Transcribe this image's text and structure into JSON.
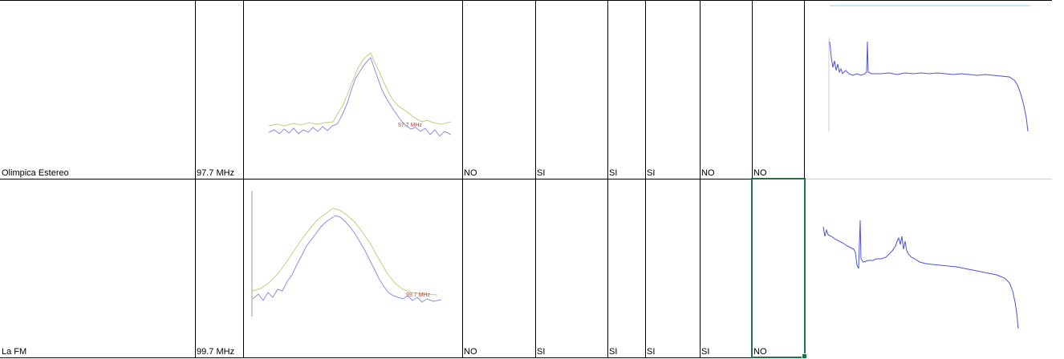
{
  "rows": [
    {
      "station": "Olimpica Estereo",
      "frequency": "97.7 MHz",
      "marker_text": "97.7 MHz",
      "c1": "NO",
      "c2": "SI",
      "c3": "SI",
      "c4": "SI",
      "c5": "NO",
      "c6": "NO"
    },
    {
      "station": "La FM",
      "frequency": "99.7 MHz",
      "marker_text": "99.7 MHz",
      "c1": "NO",
      "c2": "SI",
      "c3": "SI",
      "c4": "SI",
      "c5": "SI",
      "c6": "NO"
    }
  ],
  "colors": {
    "grid": "#000000",
    "selection": "#217346",
    "trace_olive": "#c9c97f",
    "trace_blue": "#8a8ee8",
    "trace_strong_blue": "#4a52e0",
    "marker_red": "#d23c3c",
    "cyan_line": "#8fd3e8"
  }
}
